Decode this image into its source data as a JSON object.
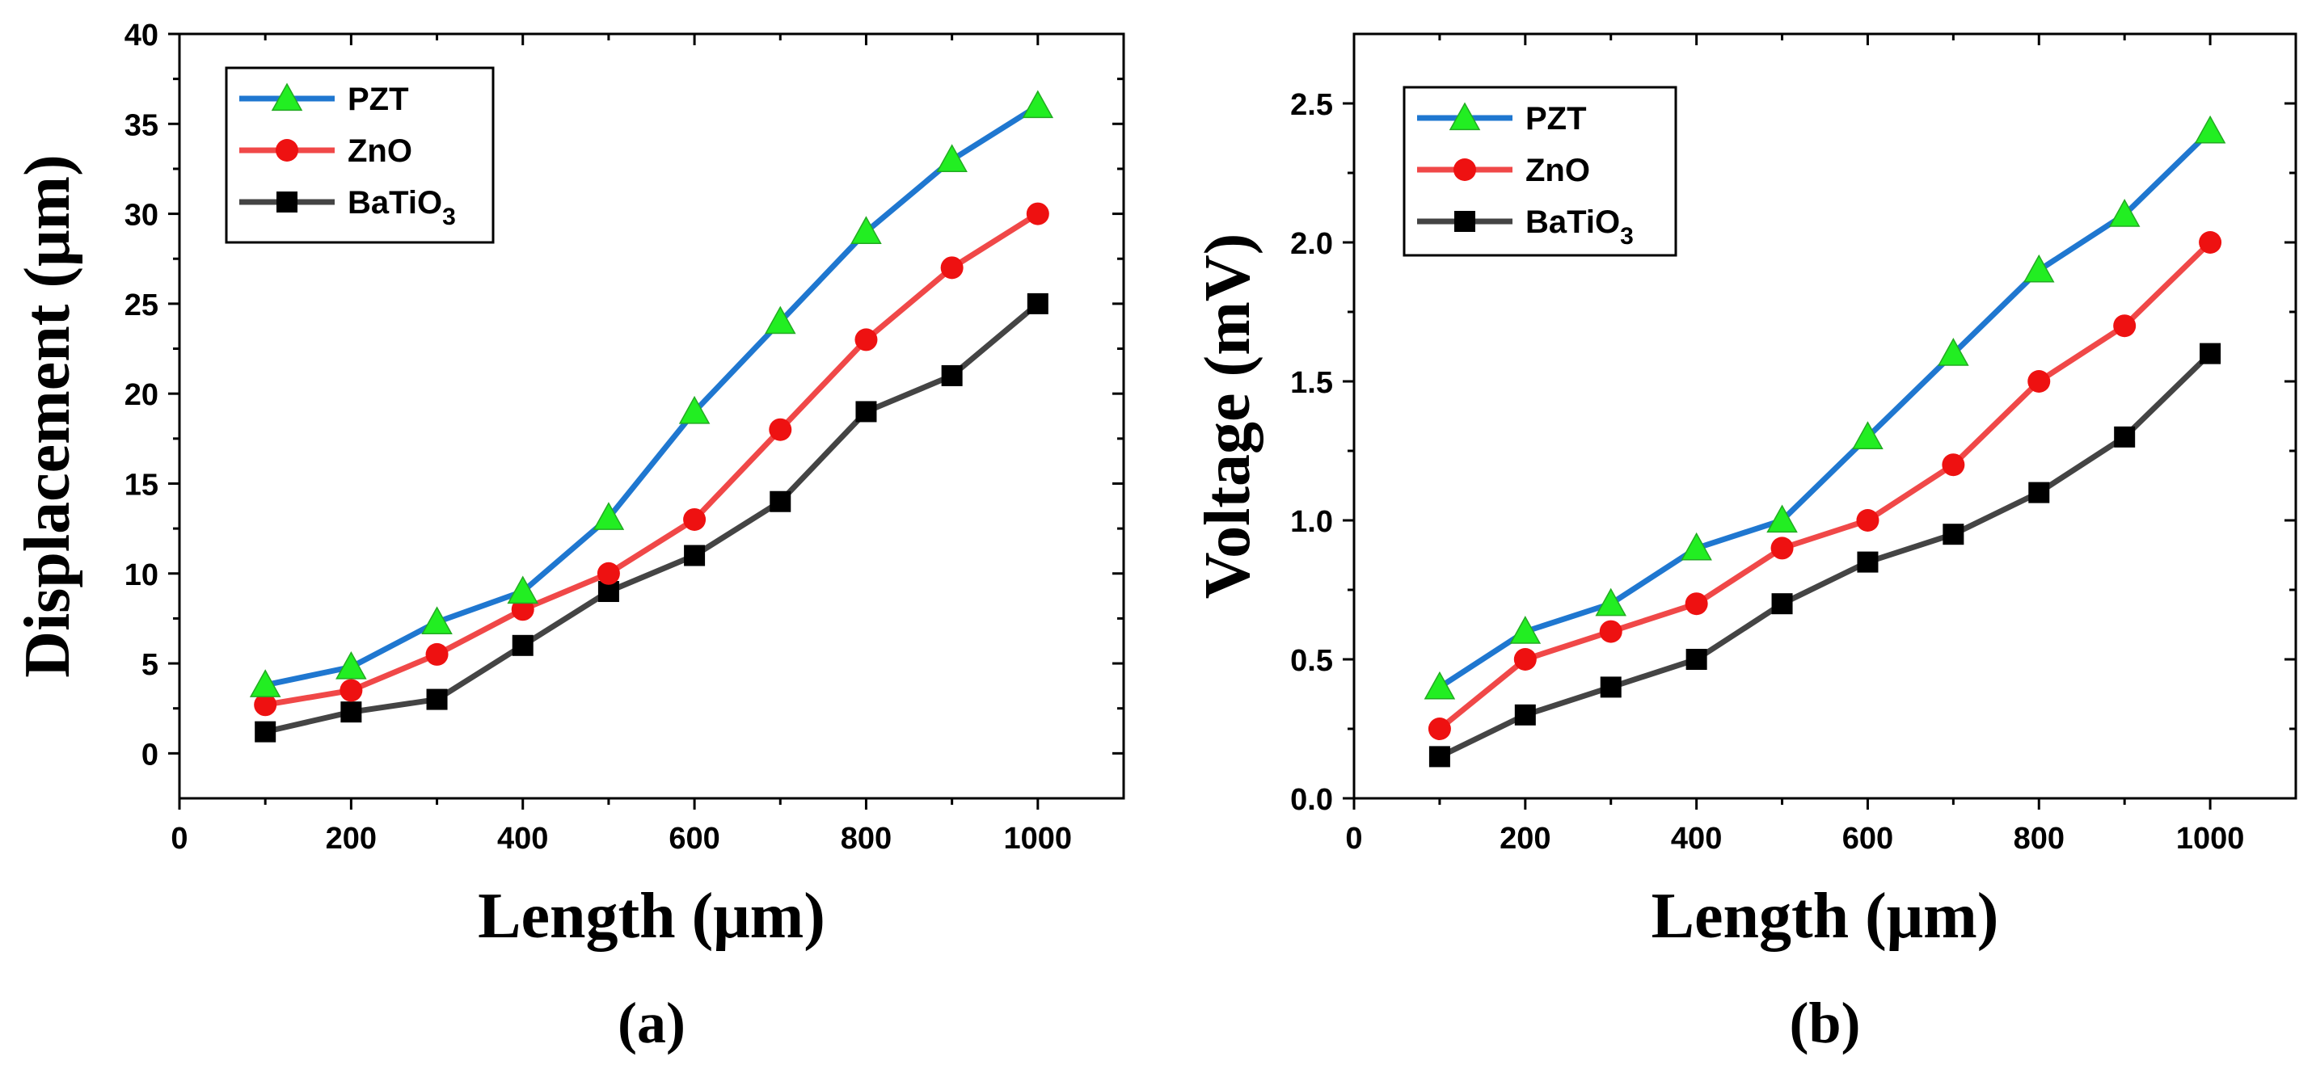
{
  "chart_data": [
    {
      "type": "line",
      "panel_label": "(a)",
      "xlabel": "Length (μm)",
      "ylabel": "Displacement (μm)",
      "xlim": [
        0,
        1100
      ],
      "ylim": [
        -2.5,
        40
      ],
      "xticks": [
        "0",
        "200",
        "400",
        "600",
        "800",
        "1000"
      ],
      "yticks": [
        "0",
        "5",
        "10",
        "15",
        "20",
        "25",
        "30",
        "35",
        "40"
      ],
      "x": [
        100,
        200,
        300,
        400,
        500,
        600,
        700,
        800,
        900,
        1000
      ],
      "legend_position": "top-left",
      "series": [
        {
          "name": "PZT",
          "color": "#1f77d0",
          "marker": "triangle",
          "marker_color": "#22ee22",
          "values": [
            3.8,
            4.8,
            7.3,
            9.0,
            13.1,
            19.0,
            24.0,
            29.0,
            33.0,
            36.0
          ]
        },
        {
          "name": "ZnO",
          "color": "#f04848",
          "marker": "circle",
          "marker_color": "#ee1111",
          "values": [
            2.7,
            3.5,
            5.5,
            8.0,
            10.0,
            13.0,
            18.0,
            23.0,
            27.0,
            30.0
          ]
        },
        {
          "name": "BaTiO3",
          "display_name": "BaTiO",
          "subscript": "3",
          "color": "#444444",
          "marker": "square",
          "marker_color": "#000000",
          "values": [
            1.2,
            2.3,
            3.0,
            6.0,
            9.0,
            11.0,
            14.0,
            19.0,
            21.0,
            25.0
          ]
        }
      ]
    },
    {
      "type": "line",
      "panel_label": "(b)",
      "xlabel": "Length (μm)",
      "ylabel": "Voltage (mV)",
      "xlim": [
        0,
        1100
      ],
      "ylim": [
        0,
        2.75
      ],
      "xticks": [
        "0",
        "200",
        "400",
        "600",
        "800",
        "1000"
      ],
      "yticks": [
        "0.0",
        "0.5",
        "1.0",
        "1.5",
        "2.0",
        "2.5"
      ],
      "x": [
        100,
        200,
        300,
        400,
        500,
        600,
        700,
        800,
        900,
        1000
      ],
      "legend_position": "top-left",
      "series": [
        {
          "name": "PZT",
          "color": "#1f77d0",
          "marker": "triangle",
          "marker_color": "#22ee22",
          "values": [
            0.4,
            0.6,
            0.7,
            0.9,
            1.0,
            1.3,
            1.6,
            1.9,
            2.1,
            2.4
          ]
        },
        {
          "name": "ZnO",
          "color": "#f04848",
          "marker": "circle",
          "marker_color": "#ee1111",
          "values": [
            0.25,
            0.5,
            0.6,
            0.7,
            0.9,
            1.0,
            1.2,
            1.5,
            1.7,
            2.0
          ]
        },
        {
          "name": "BaTiO3",
          "display_name": "BaTiO",
          "subscript": "3",
          "color": "#444444",
          "marker": "square",
          "marker_color": "#000000",
          "values": [
            0.15,
            0.3,
            0.4,
            0.5,
            0.7,
            0.85,
            0.95,
            1.1,
            1.3,
            1.6
          ]
        }
      ]
    }
  ]
}
